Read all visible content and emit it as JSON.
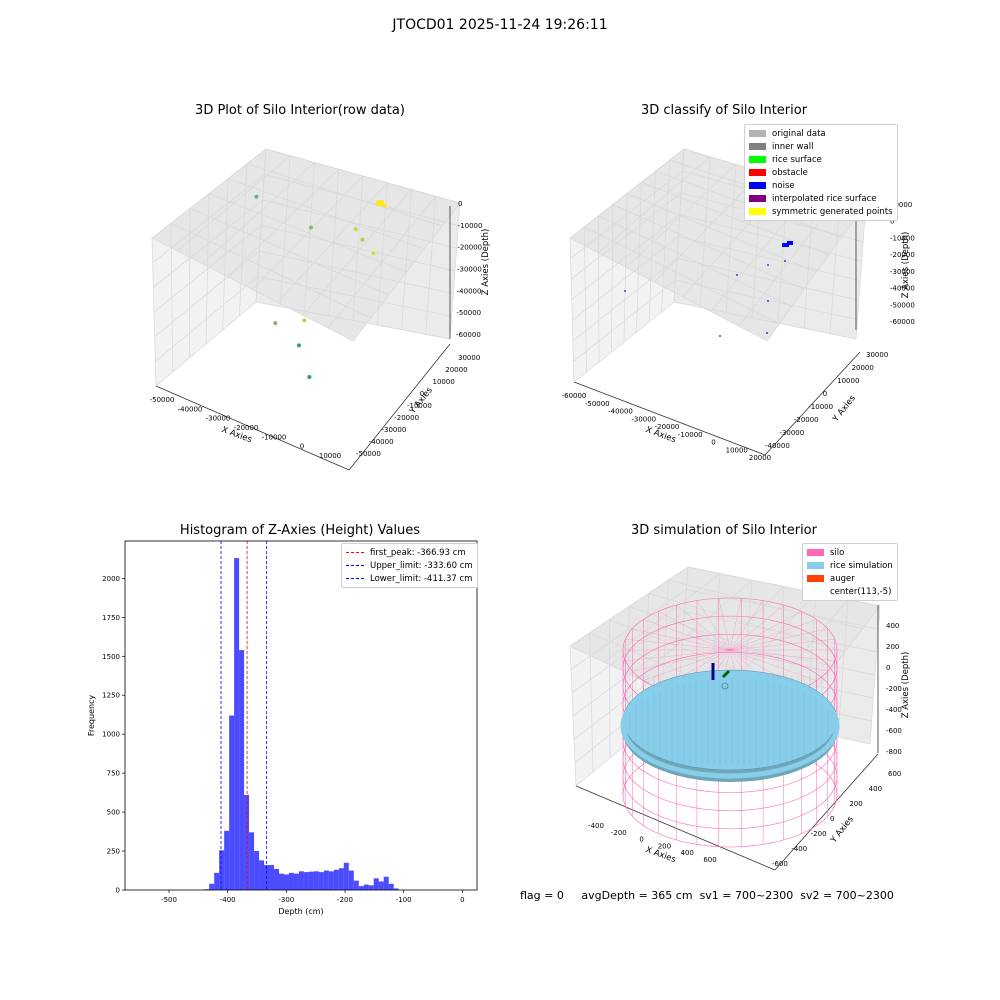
{
  "suptitle": "JTOCD01 2025-11-24 19:26:11",
  "chart_data": [
    {
      "type": "scatter",
      "projection": "3d",
      "title": "3D Plot of Silo Interior(row data)",
      "xlabel": "X Axies",
      "ylabel": "Y Axies",
      "zlabel": "Z Axies (Depth)",
      "xticks": [
        "-50000",
        "-40000",
        "-30000",
        "-20000",
        "-10000",
        "0",
        "10000"
      ],
      "yticks": [
        "30000",
        "20000",
        "10000",
        "0",
        "-10000",
        "-20000",
        "-30000",
        "-40000",
        "-50000"
      ],
      "zticks": [
        "0",
        "-10000",
        "-20000",
        "-30000",
        "-40000",
        "-50000",
        "-60000"
      ],
      "points": [
        {
          "x": -48000,
          "y": 30000,
          "z": -38000,
          "color": "#5fb88a"
        },
        {
          "x": -23000,
          "y": 8000,
          "z": -25000,
          "color": "#74c85e"
        },
        {
          "x": -8000,
          "y": 5000,
          "z": -17000,
          "color": "#c4d940"
        },
        {
          "x": -3000,
          "y": -3000,
          "z": -14000,
          "color": "#a8d44a"
        },
        {
          "x": 1000,
          "y": 5000,
          "z": -5000,
          "color": "#fde725"
        },
        {
          "x": 3000,
          "y": -10000,
          "z": -12000,
          "color": "#d8e02e"
        },
        {
          "x": -13000,
          "y": -25000,
          "z": -34000,
          "color": "#b6d646"
        },
        {
          "x": -22000,
          "y": -5000,
          "z": -57000,
          "color": "#2a9d84"
        },
        {
          "x": -14000,
          "y": -18000,
          "z": -57000,
          "color": "#2a9d84"
        },
        {
          "x": -33000,
          "y": 5000,
          "z": -60000,
          "color": "#97a88a"
        }
      ],
      "cluster": {
        "x": 1000,
        "y": 1000,
        "z": -2000,
        "color": "#fde725"
      },
      "legend": []
    },
    {
      "type": "scatter",
      "projection": "3d",
      "title": "3D classify of Silo Interior",
      "xlabel": "X Axies",
      "ylabel": "Y Axies",
      "zlabel": "Z Axies (Depth)",
      "xticks": [
        "-60000",
        "-50000",
        "-40000",
        "-30000",
        "-20000",
        "-10000",
        "0",
        "10000",
        "20000"
      ],
      "yticks": [
        "30000",
        "20000",
        "10000",
        "0",
        "-10000",
        "-20000",
        "-30000",
        "-40000"
      ],
      "zticks": [
        "10000",
        "0",
        "-10000",
        "-20000",
        "-30000",
        "-40000",
        "-50000",
        "-60000"
      ],
      "legend": [
        {
          "label": "original data",
          "color": "#b3b3b3"
        },
        {
          "label": "inner wall",
          "color": "#808080"
        },
        {
          "label": "rice surface",
          "color": "#00ff00"
        },
        {
          "label": "obstacle",
          "color": "#ff0000"
        },
        {
          "label": "noise",
          "color": "#0000ff"
        },
        {
          "label": "interpolated rice surface",
          "color": "#800080"
        },
        {
          "label": "symmetric generated points",
          "color": "#ffff00"
        }
      ],
      "points_class": "noise"
    },
    {
      "type": "bar",
      "title": "Histogram of Z-Axies (Height) Values",
      "xlabel": "Depth (cm)",
      "ylabel": "Frequency",
      "xlim": [
        -575,
        25
      ],
      "ylim": [
        0,
        2240
      ],
      "bar_color": "#0000ff",
      "bar_alpha": 0.7,
      "bin_width": 8.5,
      "bins_start": -440,
      "values": [
        5,
        40,
        110,
        255,
        380,
        1120,
        2130,
        1540,
        610,
        370,
        250,
        190,
        160,
        160,
        135,
        105,
        100,
        110,
        105,
        120,
        115,
        118,
        120,
        115,
        125,
        120,
        130,
        140,
        175,
        125,
        60,
        25,
        35,
        30,
        75,
        55,
        85,
        40,
        10
      ],
      "xticks": [
        "-500",
        "-400",
        "-300",
        "-200",
        "-100",
        "0"
      ],
      "xtick_values": [
        -500,
        -400,
        -300,
        -200,
        -100,
        0
      ],
      "yticks": [
        "0",
        "250",
        "500",
        "750",
        "1000",
        "1250",
        "1500",
        "1750",
        "2000"
      ],
      "ytick_values": [
        0,
        250,
        500,
        750,
        1000,
        1250,
        1500,
        1750,
        2000
      ],
      "vlines": [
        {
          "x": -366.93,
          "color": "#ff0000",
          "label": "first_peak: -366.93 cm"
        },
        {
          "x": -333.6,
          "color": "#0000ff",
          "label": "Upper_limit: -333.60 cm"
        },
        {
          "x": -411.37,
          "color": "#0000ff",
          "label": "Lower_limit: -411.37 cm"
        }
      ]
    },
    {
      "type": "surface",
      "projection": "3d",
      "title": "3D simulation of Silo Interior",
      "xlabel": "X Axies",
      "ylabel": "Y Axies",
      "zlabel": "Z Axies (Depth)",
      "xticks": [
        "-400",
        "-200",
        "0",
        "200",
        "400",
        "600"
      ],
      "yticks": [
        "600",
        "400",
        "200",
        "0",
        "-200",
        "-400",
        "-600"
      ],
      "zticks": [
        "400",
        "200",
        "0",
        "-200",
        "-400",
        "-600",
        "-800"
      ],
      "legend": [
        {
          "label": "silo",
          "color": "#ff69b4"
        },
        {
          "label": "rice simulation",
          "color": "#87ceeb"
        },
        {
          "label": "auger",
          "color": "#ff4500"
        },
        {
          "label": "center(113,-5)",
          "color": ""
        }
      ],
      "silo_color": "#ff69b4",
      "rice_color": "#87ceeb"
    }
  ],
  "footer": {
    "flag": "flag = 0",
    "avg": "avgDepth = 365 cm",
    "sv1": "sv1 = 700~2300",
    "sv2": "sv2 = 700~2300"
  }
}
